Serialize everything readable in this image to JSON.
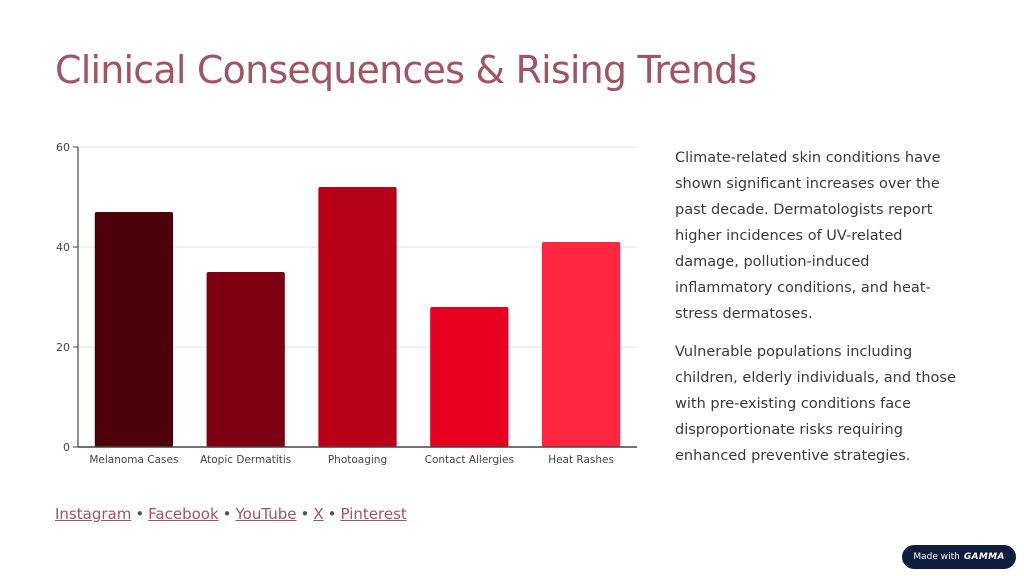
{
  "slide": {
    "title": "Clinical Consequences & Rising Trends",
    "paragraphs": [
      "Climate-related skin conditions have shown significant increases over the past decade. Dermatologists report higher incidences of UV-related damage, pollution-induced inflammatory conditions, and heat-stress dermatoses.",
      "Vulnerable populations including children, elderly individuals, and those with pre-existing conditions face disproportionate risks requiring enhanced preventive strategies."
    ]
  },
  "social": {
    "links": [
      "Instagram",
      "Facebook",
      "YouTube",
      "X",
      "Pinterest"
    ],
    "separator": "•"
  },
  "badge": {
    "prefix": "Made with",
    "brand": "GAMMA"
  },
  "chart_data": {
    "type": "bar",
    "categories": [
      "Melanoma Cases",
      "Atopic Dermatitis",
      "Photoaging",
      "Contact Allergies",
      "Heat Rashes"
    ],
    "values": [
      47,
      35,
      52,
      28,
      41
    ],
    "colors": [
      "#4d0009",
      "#7d0011",
      "#b70018",
      "#e80020",
      "#ff263f"
    ],
    "ylim": [
      0,
      60
    ],
    "yticks": [
      0,
      20,
      40,
      60
    ],
    "grid": true,
    "title": "",
    "xlabel": "",
    "ylabel": ""
  }
}
